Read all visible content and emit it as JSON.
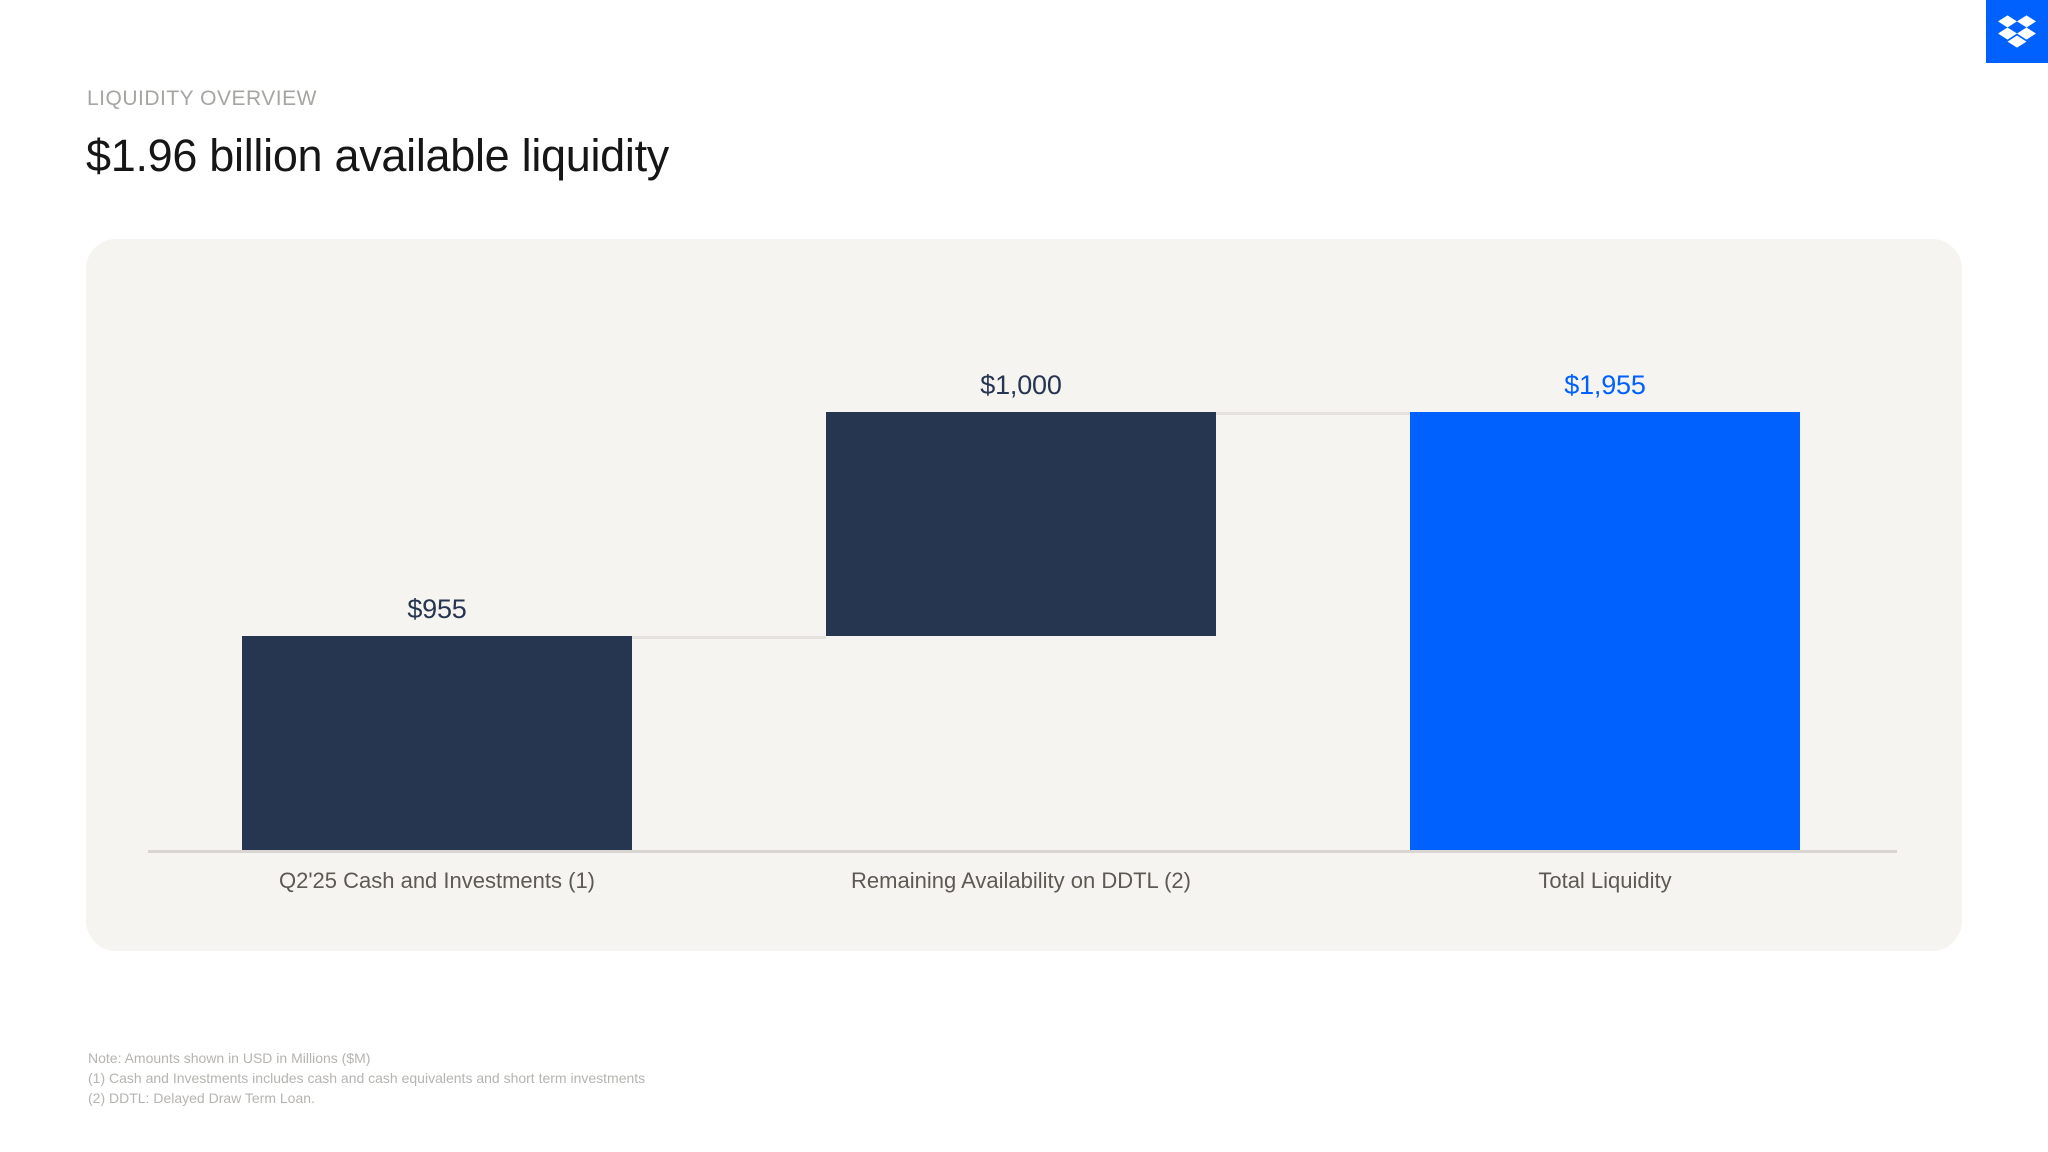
{
  "header": {
    "eyebrow": "LIQUIDITY OVERVIEW",
    "title": "$1.96 billion available liquidity"
  },
  "brand": {
    "icon": "dropbox-logo"
  },
  "colors": {
    "accent": "#0061fe",
    "navy": "#273650",
    "panel_bg": "#f5f4f0",
    "axis_line": "#d9d6d1",
    "connector": "#e5e2dd"
  },
  "chart_data": {
    "type": "bar",
    "subtype": "waterfall",
    "title": "$1.96 billion available liquidity",
    "unit": "USD millions",
    "axis_max": 1955,
    "gridlines": false,
    "legend": false,
    "categories": [
      "Q2'25 Cash and Investments (1)",
      "Remaining Availability on DDTL (2)",
      "Total Liquidity"
    ],
    "bars": [
      {
        "category": "Q2'25 Cash and Investments (1)",
        "label": "$955",
        "value": 955,
        "start": 0,
        "role": "component"
      },
      {
        "category": "Remaining Availability on DDTL (2)",
        "label": "$1,000",
        "value": 1000,
        "start": 955,
        "role": "component"
      },
      {
        "category": "Total Liquidity",
        "label": "$1,955",
        "value": 1955,
        "start": 0,
        "role": "total"
      }
    ]
  },
  "footnotes": [
    "Note: Amounts shown in USD in Millions ($M)",
    "(1) Cash and Investments includes cash and cash equivalents and short term investments",
    "(2) DDTL: Delayed Draw Term Loan."
  ]
}
